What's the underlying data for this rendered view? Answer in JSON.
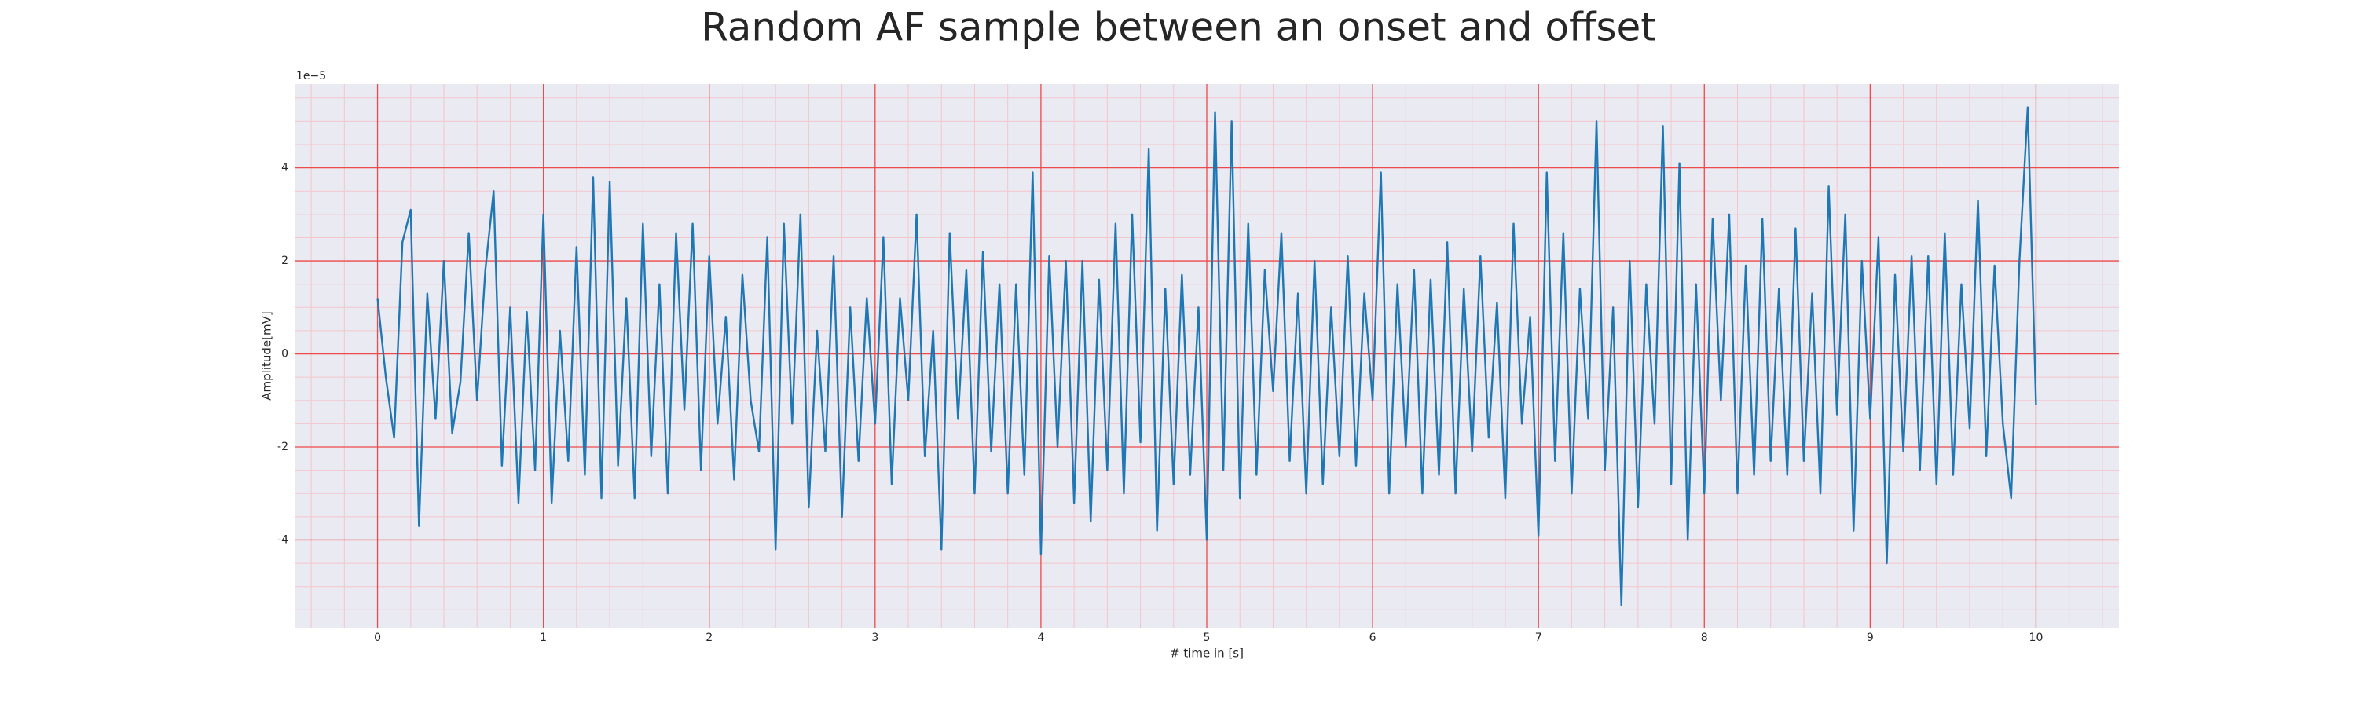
{
  "chart_data": {
    "type": "line",
    "title": "Random AF sample between an onset and offset",
    "xlabel": "# time in [s]",
    "ylabel": "Amplitude[mV]",
    "y_offset_label": "1e−5",
    "color": "#1f77b4",
    "grid": true,
    "minor_grid": true,
    "xlim": [
      -0.5,
      10.5
    ],
    "ylim": [
      -5.9,
      5.8
    ],
    "xticks": [
      0,
      1,
      2,
      3,
      4,
      5,
      6,
      7,
      8,
      9,
      10
    ],
    "yticks": [
      -4,
      -2,
      0,
      2,
      4
    ],
    "x": [
      0,
      0.05,
      0.1,
      0.15,
      0.2,
      0.25,
      0.3,
      0.35,
      0.4,
      0.45,
      0.5,
      0.55,
      0.6,
      0.65,
      0.7,
      0.75,
      0.8,
      0.85,
      0.9,
      0.95,
      1,
      1.05,
      1.1,
      1.15,
      1.2,
      1.25,
      1.3,
      1.35,
      1.4,
      1.45,
      1.5,
      1.55,
      1.6,
      1.65,
      1.7,
      1.75,
      1.8,
      1.85,
      1.9,
      1.95,
      2,
      2.05,
      2.1,
      2.15,
      2.2,
      2.25,
      2.3,
      2.35,
      2.4,
      2.45,
      2.5,
      2.55,
      2.6,
      2.65,
      2.7,
      2.75,
      2.8,
      2.85,
      2.9,
      2.95,
      3,
      3.05,
      3.1,
      3.15,
      3.2,
      3.25,
      3.3,
      3.35,
      3.4,
      3.45,
      3.5,
      3.55,
      3.6,
      3.65,
      3.7,
      3.75,
      3.8,
      3.85,
      3.9,
      3.95,
      4,
      4.05,
      4.1,
      4.15,
      4.2,
      4.25,
      4.3,
      4.35,
      4.4,
      4.45,
      4.5,
      4.55,
      4.6,
      4.65,
      4.7,
      4.75,
      4.8,
      4.85,
      4.9,
      4.95,
      5,
      5.05,
      5.1,
      5.15,
      5.2,
      5.25,
      5.3,
      5.35,
      5.4,
      5.45,
      5.5,
      5.55,
      5.6,
      5.65,
      5.7,
      5.75,
      5.8,
      5.85,
      5.9,
      5.95,
      6,
      6.05,
      6.1,
      6.15,
      6.2,
      6.25,
      6.3,
      6.35,
      6.4,
      6.45,
      6.5,
      6.55,
      6.6,
      6.65,
      6.7,
      6.75,
      6.8,
      6.85,
      6.9,
      6.95,
      7,
      7.05,
      7.1,
      7.15,
      7.2,
      7.25,
      7.3,
      7.35,
      7.4,
      7.45,
      7.5,
      7.55,
      7.6,
      7.65,
      7.7,
      7.75,
      7.8,
      7.85,
      7.9,
      7.95,
      8,
      8.05,
      8.1,
      8.15,
      8.2,
      8.25,
      8.3,
      8.35,
      8.4,
      8.45,
      8.5,
      8.55,
      8.6,
      8.65,
      8.7,
      8.75,
      8.8,
      8.85,
      8.9,
      8.95,
      9,
      9.05,
      9.1,
      9.15,
      9.2,
      9.25,
      9.3,
      9.35,
      9.4,
      9.45,
      9.5,
      9.55,
      9.6,
      9.65,
      9.7,
      9.75,
      9.8,
      9.85,
      9.9,
      9.95,
      10
    ],
    "values": [
      1.2,
      -0.5,
      -1.8,
      2.4,
      3.1,
      -3.7,
      1.3,
      -1.4,
      2.0,
      -1.7,
      -0.6,
      2.6,
      -1.0,
      1.8,
      3.5,
      -2.4,
      1.0,
      -3.2,
      0.9,
      -2.5,
      3.0,
      -3.2,
      0.5,
      -2.3,
      2.3,
      -2.6,
      3.8,
      -3.1,
      3.7,
      -2.4,
      1.2,
      -3.1,
      2.8,
      -2.2,
      1.5,
      -3.0,
      2.6,
      -1.2,
      2.8,
      -2.5,
      2.1,
      -1.5,
      0.8,
      -2.7,
      1.7,
      -1.0,
      -2.1,
      2.5,
      -4.2,
      2.8,
      -1.5,
      3.0,
      -3.3,
      0.5,
      -2.1,
      2.1,
      -3.5,
      1.0,
      -2.3,
      1.2,
      -1.5,
      2.5,
      -2.8,
      1.2,
      -1.0,
      3.0,
      -2.2,
      0.5,
      -4.2,
      2.6,
      -1.4,
      1.8,
      -3.0,
      2.2,
      -2.1,
      1.5,
      -3.0,
      1.5,
      -2.6,
      3.9,
      -4.3,
      2.1,
      -2.0,
      2.0,
      -3.2,
      2.0,
      -3.6,
      1.6,
      -2.5,
      2.8,
      -3.0,
      3.0,
      -1.9,
      4.4,
      -3.8,
      1.4,
      -2.8,
      1.7,
      -2.6,
      1.0,
      -4.0,
      5.2,
      -2.5,
      5.0,
      -3.1,
      2.8,
      -2.6,
      1.8,
      -0.8,
      2.6,
      -2.3,
      1.3,
      -3.0,
      2.0,
      -2.8,
      1.0,
      -2.2,
      2.1,
      -2.4,
      1.3,
      -1.0,
      3.9,
      -3.0,
      1.5,
      -2.0,
      1.8,
      -3.0,
      1.6,
      -2.6,
      2.4,
      -3.0,
      1.4,
      -2.1,
      2.1,
      -1.8,
      1.1,
      -3.1,
      2.8,
      -1.5,
      0.8,
      -3.9,
      3.9,
      -2.3,
      2.6,
      -3.0,
      1.4,
      -1.4,
      5.0,
      -2.5,
      1.0,
      -5.4,
      2.0,
      -3.3,
      1.5,
      -1.5,
      4.9,
      -2.8,
      4.1,
      -4.0,
      1.5,
      -3.0,
      2.9,
      -1.0,
      3.0,
      -3.0,
      1.9,
      -2.6,
      2.9,
      -2.3,
      1.4,
      -2.6,
      2.7,
      -2.3,
      1.3,
      -3.0,
      3.6,
      -1.3,
      3.0,
      -3.8,
      2.0,
      -1.4,
      2.5,
      -4.5,
      1.7,
      -2.1,
      2.1,
      -2.5,
      2.1,
      -2.8,
      2.6,
      -2.6,
      1.5,
      -1.6,
      3.3,
      -2.2,
      1.9,
      -1.5,
      -3.1,
      2.0,
      5.3,
      -1.1
    ]
  }
}
